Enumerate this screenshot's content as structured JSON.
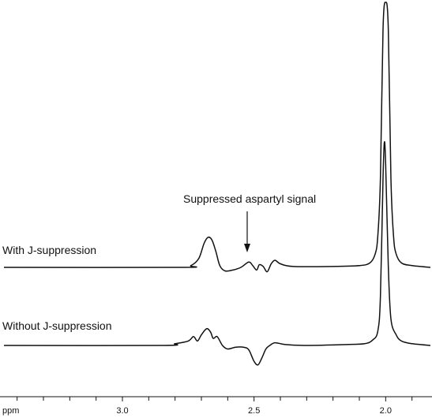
{
  "chart_data": {
    "type": "line",
    "xlabel": "ppm",
    "xlim": [
      3.45,
      1.83
    ],
    "x_reversed": true,
    "grid": false,
    "x_ticks": [
      {
        "value": 3.0,
        "label": "3.0"
      },
      {
        "value": 2.5,
        "label": "2.5"
      },
      {
        "value": 2.0,
        "label": "2.0"
      }
    ],
    "minor_tick_step": 0.1,
    "line_color": "#111111",
    "series": [
      {
        "name": "With J-suppression",
        "points": [
          [
            3.45,
            0.0
          ],
          [
            2.78,
            0.0
          ],
          [
            2.74,
            0.02
          ],
          [
            2.71,
            0.1
          ],
          [
            2.69,
            0.27
          ],
          [
            2.675,
            0.34
          ],
          [
            2.66,
            0.31
          ],
          [
            2.645,
            0.18
          ],
          [
            2.63,
            0.02
          ],
          [
            2.61,
            -0.04
          ],
          [
            2.58,
            -0.03
          ],
          [
            2.55,
            0.0
          ],
          [
            2.52,
            0.06
          ],
          [
            2.505,
            0.02
          ],
          [
            2.49,
            -0.03
          ],
          [
            2.48,
            0.03
          ],
          [
            2.465,
            0.01
          ],
          [
            2.45,
            -0.05
          ],
          [
            2.435,
            0.04
          ],
          [
            2.42,
            0.08
          ],
          [
            2.4,
            0.04
          ],
          [
            2.35,
            0.01
          ],
          [
            2.2,
            0.01
          ],
          [
            2.1,
            0.02
          ],
          [
            2.06,
            0.05
          ],
          [
            2.04,
            0.15
          ],
          [
            2.03,
            0.35
          ],
          [
            2.02,
            1.0
          ],
          [
            2.01,
            2.7
          ],
          [
            2.0,
            3.0
          ],
          [
            1.99,
            2.7
          ],
          [
            1.98,
            1.0
          ],
          [
            1.97,
            0.35
          ],
          [
            1.96,
            0.15
          ],
          [
            1.94,
            0.05
          ],
          [
            1.9,
            0.02
          ],
          [
            1.83,
            0.0
          ]
        ]
      },
      {
        "name": "Without J-suppression",
        "points": [
          [
            3.45,
            0.0
          ],
          [
            2.85,
            0.0
          ],
          [
            2.8,
            0.02
          ],
          [
            2.75,
            0.05
          ],
          [
            2.73,
            0.1
          ],
          [
            2.715,
            0.05
          ],
          [
            2.7,
            0.12
          ],
          [
            2.68,
            0.19
          ],
          [
            2.665,
            0.15
          ],
          [
            2.655,
            0.08
          ],
          [
            2.64,
            0.1
          ],
          [
            2.62,
            0.0
          ],
          [
            2.6,
            -0.04
          ],
          [
            2.57,
            -0.02
          ],
          [
            2.54,
            -0.02
          ],
          [
            2.52,
            -0.05
          ],
          [
            2.5,
            -0.18
          ],
          [
            2.485,
            -0.22
          ],
          [
            2.47,
            -0.14
          ],
          [
            2.455,
            -0.04
          ],
          [
            2.44,
            0.0
          ],
          [
            2.42,
            0.03
          ],
          [
            2.38,
            0.01
          ],
          [
            2.3,
            0.0
          ],
          [
            2.15,
            0.01
          ],
          [
            2.08,
            0.02
          ],
          [
            2.05,
            0.06
          ],
          [
            2.03,
            0.16
          ],
          [
            2.02,
            0.55
          ],
          [
            2.01,
            1.9
          ],
          [
            2.005,
            2.3
          ],
          [
            2.0,
            2.05
          ],
          [
            1.99,
            0.9
          ],
          [
            1.98,
            0.3
          ],
          [
            1.96,
            0.12
          ],
          [
            1.94,
            0.05
          ],
          [
            1.9,
            0.02
          ],
          [
            1.83,
            0.0
          ]
        ]
      }
    ],
    "annotations": [
      {
        "text": "Suppressed aspartyl signal",
        "x": 2.48
      }
    ]
  }
}
